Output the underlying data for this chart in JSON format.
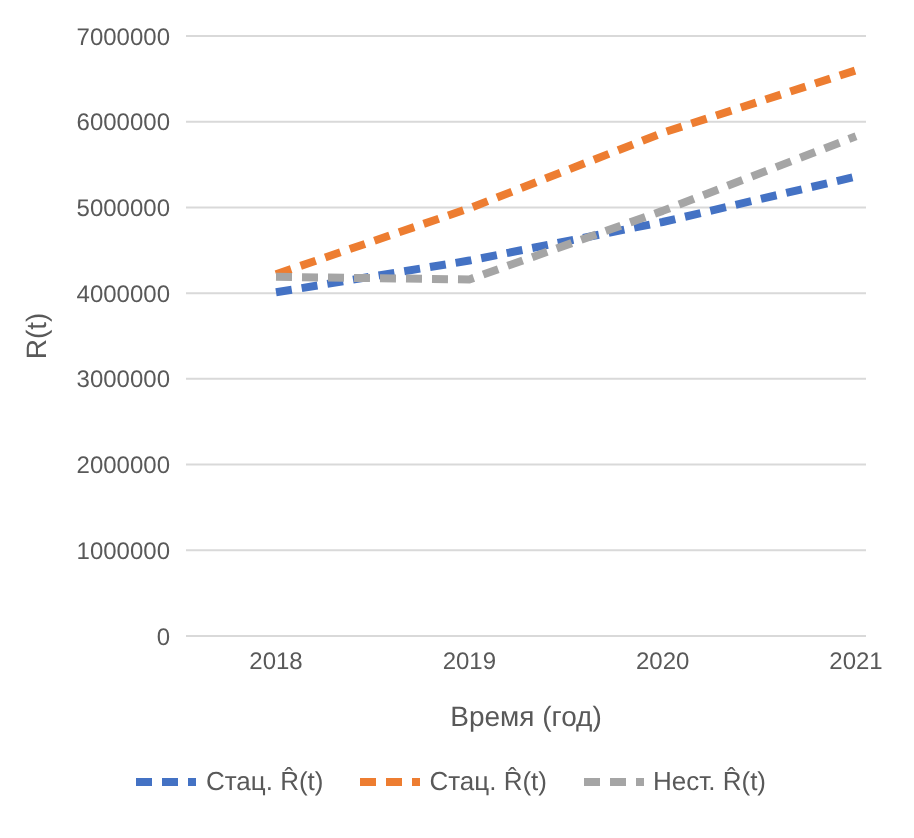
{
  "chart_data": {
    "type": "line",
    "xlabel": "Время (год)",
    "ylabel": "R(t)",
    "categories": [
      "2018",
      "2019",
      "2020",
      "2021"
    ],
    "series": [
      {
        "name": "Стац. R̂(t)",
        "color": "#4472c4",
        "values": [
          4010000,
          4380000,
          4830000,
          5360000
        ]
      },
      {
        "name": "Стац. R̂(t)",
        "color": "#ed7d31",
        "values": [
          4220000,
          4990000,
          5870000,
          6600000
        ]
      },
      {
        "name": "Нест. R̂(t)",
        "color": "#a5a5a5",
        "values": [
          4190000,
          4160000,
          4960000,
          5830000
        ]
      }
    ],
    "ylim": [
      0,
      7000000
    ],
    "yticks": [
      0,
      1000000,
      2000000,
      3000000,
      4000000,
      5000000,
      6000000,
      7000000
    ],
    "grid": "y",
    "legend": "bottom",
    "line_style": "dashed",
    "marker": "none"
  }
}
